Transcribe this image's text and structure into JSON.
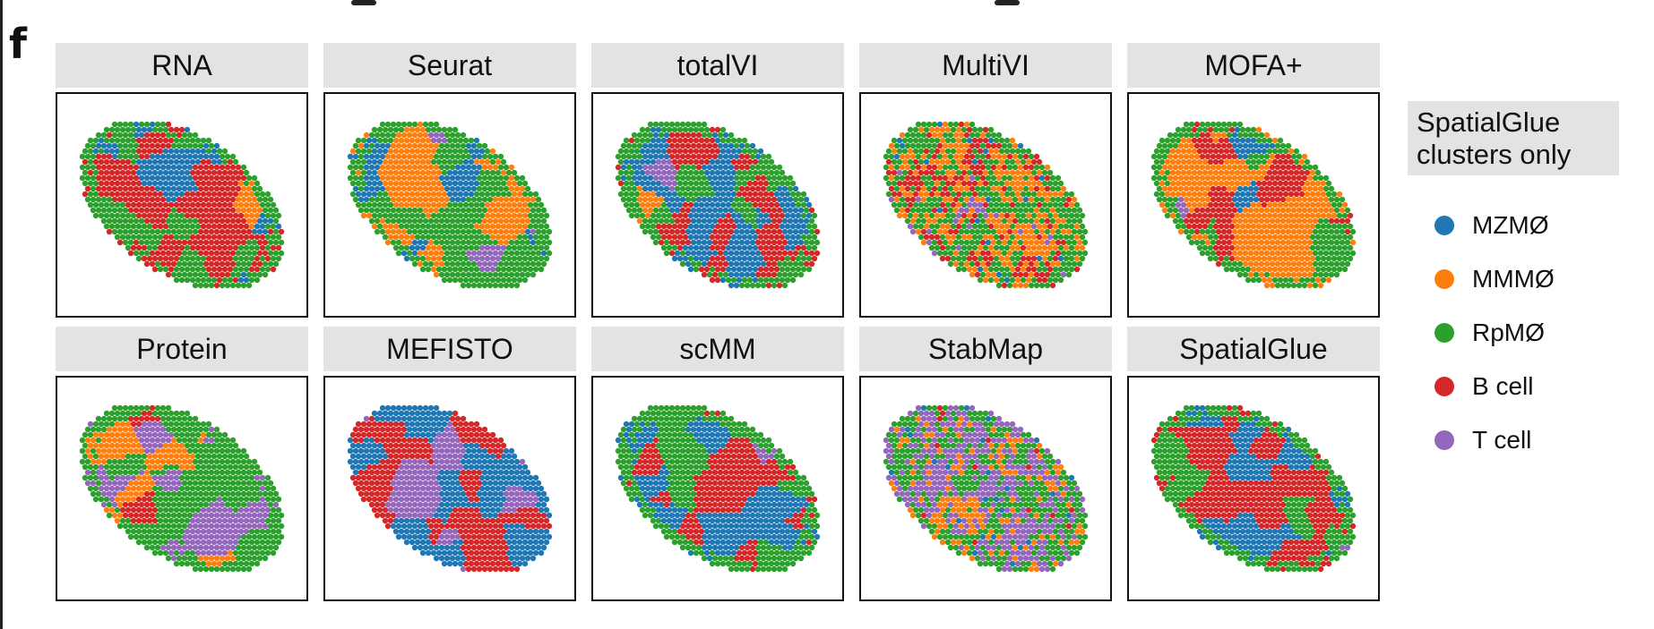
{
  "panel_label": "f",
  "chart_data": {
    "type": "scatter",
    "kind": "spatial-domain-map-grid",
    "facets": [
      "RNA",
      "Seurat",
      "totalVI",
      "MultiVI",
      "MOFA+",
      "Protein",
      "MEFISTO",
      "scMM",
      "StabMap",
      "SpatialGlue"
    ],
    "facet_layout": {
      "rows": 2,
      "cols": 5
    },
    "legend": {
      "title": "SpatialGlue\nclusters only",
      "placement": "right",
      "items": [
        {
          "label": "MZMØ",
          "color": "#1f77b4"
        },
        {
          "label": "MMMØ",
          "color": "#ff7f0e"
        },
        {
          "label": "RpMØ",
          "color": "#2ca02c"
        },
        {
          "label": "B cell",
          "color": "#d62728"
        },
        {
          "label": "T cell",
          "color": "#9467bd"
        }
      ]
    },
    "dominant_clusters": {
      "RNA": [
        "B cell",
        "MZMØ",
        "RpMØ"
      ],
      "Seurat": [
        "RpMØ",
        "MMMØ",
        "MZMØ"
      ],
      "totalVI": [
        "B cell",
        "MZMØ",
        "RpMØ"
      ],
      "MultiVI": [
        "RpMØ",
        "MMMØ",
        "B cell"
      ],
      "MOFA+": [
        "MMMØ",
        "B cell",
        "RpMØ"
      ],
      "Protein": [
        "RpMØ",
        "MMMØ",
        "T cell"
      ],
      "MEFISTO": [
        "B cell",
        "MZMØ",
        "T cell"
      ],
      "scMM": [
        "B cell",
        "MZMØ",
        "RpMØ"
      ],
      "StabMap": [
        "T cell",
        "RpMØ",
        "MMMØ"
      ],
      "SpatialGlue": [
        "B cell",
        "MZMØ",
        "RpMØ"
      ]
    },
    "grid": false,
    "axes": false
  }
}
